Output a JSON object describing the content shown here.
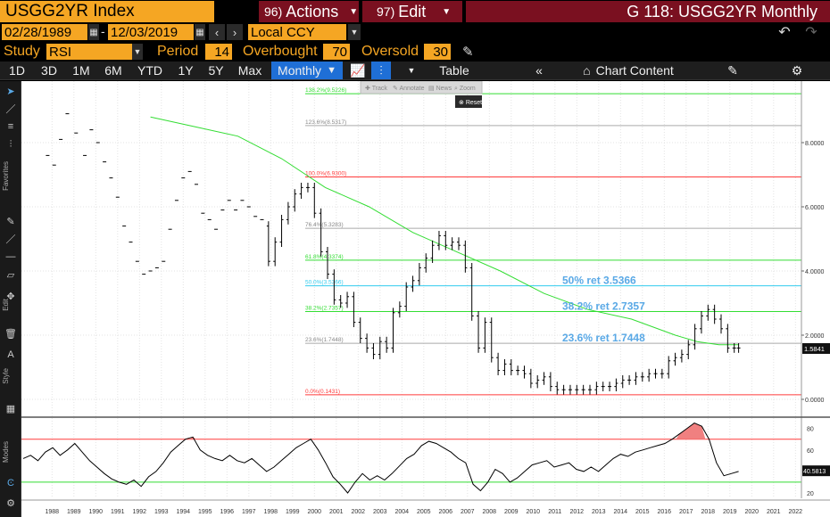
{
  "header": {
    "ticker": "USGG2YR Index",
    "actions": {
      "num": "96)",
      "label": "Actions"
    },
    "edit": {
      "num": "97)",
      "label": "Edit"
    },
    "title": "G 118: USGG2YR Monthly"
  },
  "dates": {
    "start": "02/28/1989",
    "end": "12/03/2019",
    "currency": "Local CCY"
  },
  "study": {
    "label": "Study",
    "value": "RSI",
    "period_label": "Period",
    "period": "14",
    "overbought_label": "Overbought",
    "overbought": "70",
    "oversold_label": "Oversold",
    "oversold": "30"
  },
  "toolbar": {
    "ranges": [
      "1D",
      "3D",
      "1M",
      "6M",
      "YTD",
      "1Y",
      "5Y",
      "Max"
    ],
    "frequency": "Monthly",
    "table": "Table",
    "chart_content": "Chart Content"
  },
  "floating_toolbar": [
    "Track",
    "Annotate",
    "News",
    "Zoom"
  ],
  "reset_label": "Reset",
  "left_labels": [
    "Favorites",
    "Edit",
    "Style",
    "Modes"
  ],
  "colors": {
    "orange": "#f5a623",
    "maroon": "#7a1020",
    "selected": "#1f6fd6",
    "green": "#33dd33",
    "red": "#ff3b3b",
    "cyan": "#33ccee",
    "fib_blue": "#5aa9e6"
  },
  "chart_data": [
    {
      "type": "line",
      "title": "",
      "x_ticks": [
        "1988",
        "1989",
        "1990",
        "1991",
        "1992",
        "1993",
        "1994",
        "1995",
        "1996",
        "1997",
        "1998",
        "1999",
        "2000",
        "2001",
        "2002",
        "2003",
        "2004",
        "2005",
        "2006",
        "2007",
        "2008",
        "2009",
        "2010",
        "2011",
        "2012",
        "2013",
        "2014",
        "2015",
        "2016",
        "2017",
        "2018",
        "2019",
        "2020",
        "2021",
        "2022"
      ],
      "y_ticks": [
        "8.0000",
        "6.0000",
        "4.0000",
        "2.0000",
        "0.0000"
      ],
      "ylim": [
        -0.2,
        10
      ],
      "last_price": "1.5841",
      "fib_levels": [
        {
          "label": "138.2%(9.5226)",
          "value": 9.5226,
          "color": "#33dd33"
        },
        {
          "label": "123.6%(8.5317)",
          "value": 8.5317,
          "color": "#aaaaaa"
        },
        {
          "label": "100.0%(6.9300)",
          "value": 6.93,
          "color": "#ff3b3b"
        },
        {
          "label": "76.4%(5.3283)",
          "value": 5.3283,
          "color": "#aaaaaa"
        },
        {
          "label": "61.8%(4.3374)",
          "value": 4.3374,
          "color": "#33dd33"
        },
        {
          "label": "50.0%(3.5366)",
          "value": 3.5366,
          "color": "#33ccee"
        },
        {
          "label": "38.2%(2.7357)",
          "value": 2.7357,
          "color": "#33dd33"
        },
        {
          "label": "23.6%(1.7448)",
          "value": 1.7448,
          "color": "#aaaaaa"
        },
        {
          "label": "0.0%(0.1431)",
          "value": 0.1431,
          "color": "#ff3b3b"
        }
      ],
      "annotations": [
        "50% ret 3.5366",
        "38.2% ret 2.7357",
        "23.6% ret 1.7448"
      ],
      "series": [
        {
          "values_x": [
            1988.3,
            1988.6,
            1988.9,
            1989.2,
            1989.6,
            1990.0,
            1990.3,
            1990.6,
            1990.9,
            1991.2,
            1991.5,
            1991.8,
            1992.1,
            1992.4,
            1992.7,
            1993.0,
            1993.3,
            1993.6,
            1993.9,
            1994.2,
            1994.5,
            1994.8,
            1995.1,
            1995.4,
            1995.7,
            1996.0,
            1996.3,
            1996.6,
            1996.9,
            1997.2,
            1997.5,
            1997.8,
            1998.1,
            1998.4,
            1998.7,
            1999.0,
            1999.3,
            1999.6,
            1999.9,
            2000.2,
            2000.5,
            2000.8,
            2001.1,
            2001.4,
            2001.7,
            2002.0,
            2002.3,
            2002.6,
            2002.9,
            2003.2,
            2003.5,
            2003.8,
            2004.1,
            2004.4,
            2004.7,
            2005.0,
            2005.3,
            2005.6,
            2005.9,
            2006.2,
            2006.5,
            2006.8,
            2007.1,
            2007.4,
            2007.7,
            2008.0,
            2008.3,
            2008.6,
            2008.9,
            2009.2,
            2009.5,
            2009.8,
            2010.1,
            2010.4,
            2010.7,
            2011.0,
            2011.3,
            2011.6,
            2011.9,
            2012.2,
            2012.5,
            2012.8,
            2013.1,
            2013.4,
            2013.7,
            2014.0,
            2014.3,
            2014.6,
            2014.9,
            2015.2,
            2015.5,
            2015.8,
            2016.1,
            2016.4,
            2016.7,
            2017.0,
            2017.3,
            2017.6,
            2017.9,
            2018.2,
            2018.5,
            2018.8,
            2019.1,
            2019.4,
            2019.7,
            2019.9
          ],
          "values_y": [
            7.6,
            7.3,
            8.1,
            8.9,
            8.3,
            7.6,
            8.4,
            8.0,
            7.4,
            6.9,
            6.3,
            5.4,
            4.9,
            4.3,
            3.9,
            4.0,
            4.1,
            4.3,
            5.3,
            6.2,
            6.9,
            7.1,
            6.7,
            5.8,
            5.6,
            5.3,
            5.9,
            6.2,
            5.9,
            6.2,
            6.0,
            5.7,
            5.6,
            5.4,
            4.3,
            4.9,
            5.6,
            6.0,
            6.4,
            6.6,
            6.6,
            5.8,
            4.6,
            3.9,
            3.1,
            3.0,
            3.2,
            2.4,
            1.9,
            1.6,
            1.4,
            1.8,
            1.6,
            2.7,
            2.9,
            3.5,
            3.7,
            4.1,
            4.4,
            4.8,
            5.1,
            4.8,
            4.9,
            4.8,
            4.1,
            2.6,
            1.6,
            2.4,
            1.3,
            0.9,
            1.1,
            0.9,
            0.9,
            0.8,
            0.5,
            0.6,
            0.7,
            0.4,
            0.3,
            0.3,
            0.3,
            0.3,
            0.3,
            0.3,
            0.4,
            0.4,
            0.4,
            0.5,
            0.6,
            0.6,
            0.7,
            0.7,
            0.8,
            0.8,
            0.8,
            1.2,
            1.3,
            1.4,
            1.7,
            2.2,
            2.6,
            2.8,
            2.5,
            2.2,
            1.6,
            1.6
          ],
          "ma_x": [
            1993.0,
            1995.0,
            1997.0,
            1999.0,
            2001.0,
            2003.0,
            2005.0,
            2007.0,
            2009.0,
            2011.0,
            2013.0,
            2015.0,
            2017.0,
            2018.0,
            2019.0,
            2019.9
          ],
          "ma_y": [
            8.8,
            8.5,
            8.2,
            7.5,
            6.6,
            6.0,
            5.2,
            4.6,
            4.0,
            3.3,
            2.8,
            2.5,
            2.0,
            1.8,
            1.7,
            1.7
          ]
        }
      ]
    },
    {
      "type": "line",
      "title": "",
      "y_ticks": [
        "80",
        "60",
        "40",
        "20"
      ],
      "ylim": [
        15,
        88
      ],
      "overbought": 70,
      "oversold": 30,
      "last_value": "40.5813",
      "series": [
        {
          "values_y": [
            52,
            55,
            50,
            58,
            62,
            55,
            60,
            66,
            58,
            50,
            44,
            38,
            33,
            30,
            28,
            32,
            26,
            35,
            40,
            48,
            58,
            64,
            70,
            72,
            60,
            55,
            52,
            50,
            55,
            50,
            48,
            52,
            46,
            40,
            44,
            50,
            56,
            62,
            66,
            70,
            60,
            48,
            35,
            28,
            20,
            30,
            38,
            32,
            36,
            32,
            38,
            45,
            52,
            56,
            64,
            68,
            66,
            62,
            58,
            52,
            48,
            28,
            22,
            30,
            42,
            38,
            30,
            34,
            40,
            46,
            48,
            50,
            44,
            46,
            48,
            42,
            40,
            44,
            40,
            46,
            52,
            56,
            54,
            58,
            60,
            62,
            64,
            66,
            70,
            75,
            80,
            85,
            82,
            70,
            48,
            36,
            38,
            40
          ]
        }
      ]
    }
  ]
}
